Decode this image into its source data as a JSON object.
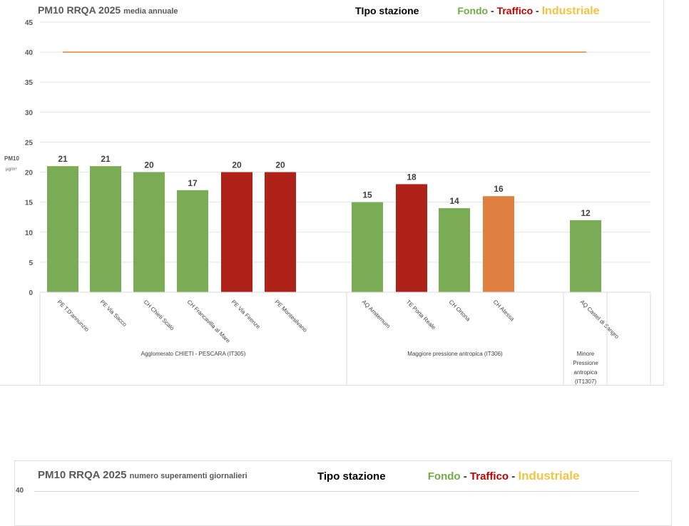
{
  "chart_data": {
    "type": "bar",
    "title": "PM10 RRQA  2025",
    "subtitle": "media annuale",
    "ylabel": "PM10",
    "yunit": "µg/m³",
    "ylim": [
      0,
      45
    ],
    "yticks": [
      "0",
      "5",
      "10",
      "15",
      "20",
      "25",
      "30",
      "35",
      "40",
      "45"
    ],
    "grid": true,
    "limit_line": {
      "value": 40,
      "color": "#ED7D31"
    },
    "categories": [
      "PE T.D'annunzio",
      "PE Via Sacco",
      "CH Chieti Scalo",
      "CH Francavilla al Mare",
      "PE  Via Firenze",
      "PE Montesilvano",
      "AQ Amiternum",
      "TE Porta Reale",
      "CH Ortona",
      "CH Atessa",
      "AQ Castel di Sangro"
    ],
    "values": [
      21,
      21,
      20,
      17,
      20,
      20,
      15,
      18,
      14,
      16,
      12
    ],
    "value_labels": [
      "21",
      "21",
      "20",
      "17",
      "20",
      "20",
      "15",
      "18",
      "14",
      "16",
      "12"
    ],
    "station_types": [
      "Fondo",
      "Fondo",
      "Fondo",
      "Fondo",
      "Traffico",
      "Traffico",
      "Fondo",
      "Traffico",
      "Fondo",
      "Industriale",
      "Fondo"
    ],
    "groups": [
      {
        "label": "Agglomerato CHIETI - PESCARA (IT305)",
        "count": 6
      },
      {
        "label": "Maggiore pressione antropica (IT306)",
        "count": 4
      },
      {
        "label": "Minore Pressione antropica (IT1307)",
        "count": 1
      }
    ]
  },
  "legend": {
    "title": "TIpo stazione",
    "fondo": "Fondo",
    "traffico": "Traffico",
    "industriale": "Industriale",
    "sep": "-"
  },
  "colors": {
    "Fondo": "#7AAB55",
    "Traffico": "#AF2219",
    "Industriale": "#E08040",
    "legend_industriale": "#F5C242",
    "legend_fondo": "#70AD47",
    "legend_traffico": "#C00000"
  },
  "chart2": {
    "title": "PM10 RRQA  2025",
    "subtitle": "numero superamenti giornalieri",
    "legend_title": "Tipo stazione",
    "first_tick": "40"
  }
}
